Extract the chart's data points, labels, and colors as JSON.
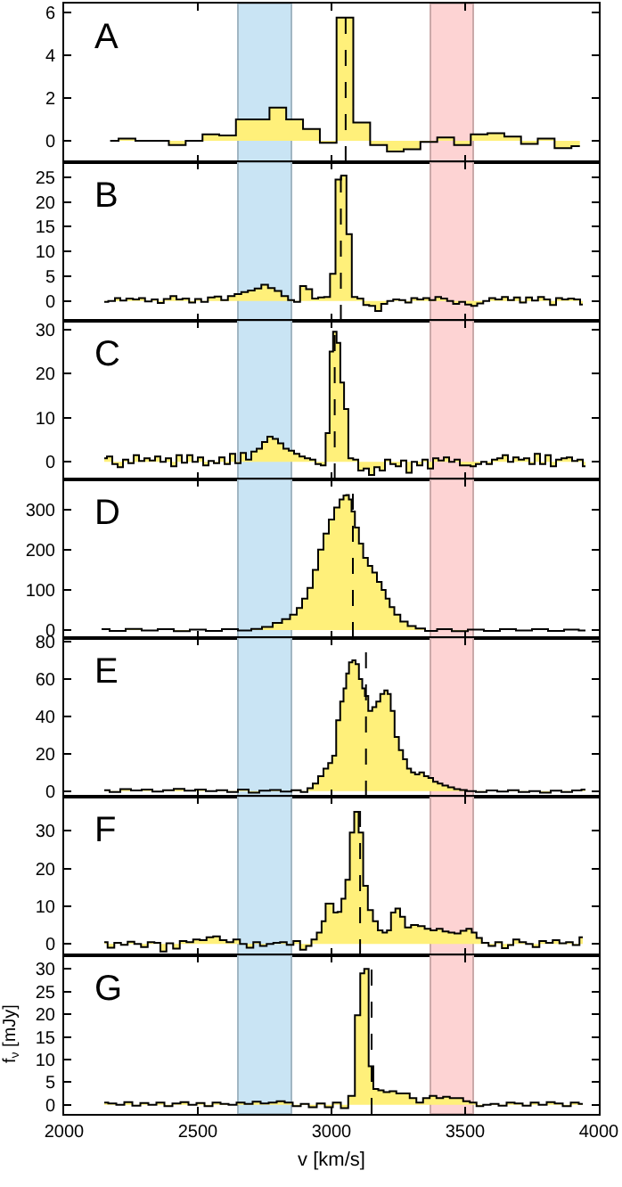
{
  "chart_data": [
    {
      "type": "area",
      "title": "A",
      "color": "#fff07a",
      "xlim": [
        2000,
        4000
      ],
      "xticks": [
        2000,
        2500,
        3000,
        3500,
        4000
      ],
      "ylim": [
        -1,
        6.4
      ],
      "yticks": [
        0,
        2,
        4,
        6
      ],
      "tick_labels": "y",
      "x": [
        2172,
        2235,
        2298,
        2360,
        2423,
        2486,
        2549,
        2611,
        2674,
        2737,
        2799,
        2862,
        2925,
        2988,
        3050,
        3113,
        3176,
        3239,
        3301,
        3364,
        3427,
        3490,
        3552,
        3615,
        3678,
        3740,
        3803,
        3866,
        3929
      ],
      "values": [
        0.0,
        0.1,
        0.0,
        0.0,
        -0.2,
        0.0,
        0.3,
        0.25,
        1.0,
        1.0,
        1.55,
        1.0,
        0.55,
        -0.1,
        5.75,
        0.85,
        -0.2,
        -0.5,
        -0.4,
        -0.05,
        0.15,
        -0.2,
        0.3,
        0.35,
        0.2,
        -0.15,
        0.1,
        -0.35,
        -0.25
      ],
      "bands": [
        {
          "axis": "x",
          "from": 2650,
          "to": 2850,
          "color": "#c9e4f4"
        },
        {
          "axis": "x",
          "from": 3370,
          "to": 3530,
          "color": "#fdd3d3"
        }
      ],
      "ref_lines": [
        {
          "axis": "x",
          "value": 3053,
          "line_style": "dashed"
        }
      ]
    },
    {
      "type": "area",
      "title": "B",
      "color": "#fff07a",
      "xlim": [
        2000,
        4000
      ],
      "xticks": [
        2000,
        2500,
        3000,
        3500,
        4000
      ],
      "ylim": [
        -4,
        28
      ],
      "yticks": [
        0,
        5,
        10,
        15,
        20,
        25
      ],
      "tick_labels": "y",
      "x": [
        2150,
        2180,
        2200,
        2220,
        2245,
        2270,
        2290,
        2315,
        2340,
        2360,
        2385,
        2410,
        2430,
        2455,
        2480,
        2500,
        2525,
        2550,
        2575,
        2600,
        2625,
        2650,
        2675,
        2700,
        2725,
        2750,
        2775,
        2800,
        2825,
        2850,
        2870,
        2895,
        2915,
        2940,
        2960,
        2985,
        3004,
        3026,
        3046,
        3066,
        3086,
        3108,
        3130,
        3152,
        3175,
        3197,
        3220,
        3242,
        3265,
        3287,
        3310,
        3332,
        3355,
        3377,
        3400,
        3420,
        3445,
        3465,
        3490,
        3510,
        3535,
        3555,
        3580,
        3600,
        3625,
        3650,
        3670,
        3695,
        3715,
        3740,
        3760,
        3785,
        3805,
        3830,
        3850,
        3875,
        3895,
        3920,
        3940
      ],
      "values": [
        -0.2,
        0.0,
        0.6,
        0.1,
        0.5,
        0.3,
        0.6,
        -0.1,
        0.3,
        -0.4,
        0.4,
        1.0,
        0.3,
        0.5,
        -0.3,
        0.4,
        -0.2,
        0.7,
        0.9,
        0.2,
        1.0,
        1.4,
        1.8,
        2.1,
        2.5,
        3.3,
        2.6,
        2.0,
        1.0,
        0.2,
        -0.2,
        3.0,
        2.4,
        0.5,
        0.7,
        0.8,
        5.5,
        24.5,
        25.3,
        13.5,
        0.8,
        0.5,
        -0.8,
        -1.0,
        -2.0,
        -0.6,
        0.0,
        0.3,
        0.2,
        -0.3,
        0.6,
        0.3,
        0.6,
        0.2,
        0.8,
        0.5,
        0.0,
        -0.6,
        -0.2,
        -0.7,
        -1.0,
        -0.5,
        0.0,
        0.6,
        0.3,
        0.8,
        0.2,
        0.7,
        -0.3,
        0.7,
        0.1,
        0.8,
        0.3,
        -0.8,
        0.6,
        0.3,
        0.5,
        0.3,
        -0.7
      ],
      "bands": [
        {
          "axis": "x",
          "from": 2650,
          "to": 2850,
          "color": "#c9e4f4"
        },
        {
          "axis": "x",
          "from": 3370,
          "to": 3530,
          "color": "#fdd3d3"
        }
      ],
      "ref_lines": [
        {
          "axis": "x",
          "value": 3035,
          "line_style": "dashed"
        }
      ]
    },
    {
      "type": "area",
      "title": "C",
      "color": "#fff07a",
      "xlim": [
        2000,
        4000
      ],
      "xticks": [
        2000,
        2500,
        3000,
        3500,
        4000
      ],
      "ylim": [
        -4,
        32
      ],
      "yticks": [
        0,
        10,
        20,
        30
      ],
      "tick_labels": "y",
      "x": [
        2150,
        2170,
        2190,
        2210,
        2230,
        2250,
        2270,
        2290,
        2310,
        2330,
        2350,
        2370,
        2390,
        2410,
        2430,
        2450,
        2470,
        2490,
        2510,
        2530,
        2550,
        2570,
        2590,
        2610,
        2630,
        2650,
        2670,
        2690,
        2710,
        2730,
        2750,
        2770,
        2790,
        2810,
        2830,
        2850,
        2870,
        2890,
        2910,
        2930,
        2950,
        2970,
        2986,
        3000,
        3012,
        3026,
        3040,
        3054,
        3072,
        3090,
        3110,
        3130,
        3150,
        3170,
        3190,
        3210,
        3230,
        3250,
        3270,
        3290,
        3310,
        3330,
        3350,
        3370,
        3390,
        3410,
        3430,
        3450,
        3470,
        3490,
        3510,
        3530,
        3550,
        3570,
        3590,
        3610,
        3630,
        3650,
        3670,
        3690,
        3710,
        3730,
        3750,
        3770,
        3790,
        3810,
        3830,
        3850,
        3870,
        3890,
        3910,
        3930,
        3950
      ],
      "values": [
        0.8,
        1.2,
        -0.5,
        -1.2,
        0.5,
        -0.3,
        1.5,
        0.2,
        0.8,
        0.3,
        1.2,
        0.0,
        0.8,
        -1.0,
        1.5,
        -0.2,
        1.5,
        0.0,
        1.0,
        -0.8,
        0.2,
        -0.3,
        1.0,
        -0.5,
        1.8,
        -0.3,
        2.0,
        0.5,
        2.3,
        3.0,
        4.5,
        5.7,
        5.2,
        4.2,
        3.0,
        2.5,
        1.8,
        1.2,
        0.8,
        0.5,
        -0.5,
        -0.8,
        6.5,
        25,
        29.5,
        27,
        18,
        12,
        0.8,
        0.5,
        -2.0,
        -1.5,
        -3.0,
        -1.2,
        -2.0,
        0.5,
        -0.5,
        -1.0,
        0.3,
        -2.5,
        0.0,
        -0.8,
        0.5,
        -1.5,
        0.8,
        0.3,
        1.0,
        0.0,
        0.5,
        -0.8,
        -0.8,
        -1.0,
        -0.5,
        0.0,
        -0.5,
        0.5,
        0.8,
        1.5,
        0.0,
        1.0,
        0.5,
        0.8,
        -0.5,
        1.8,
        -0.5,
        1.5,
        -1.0,
        0.5,
        0.8,
        1.0,
        0.2,
        0.5,
        -1.0
      ],
      "bands": [
        {
          "axis": "x",
          "from": 2650,
          "to": 2850,
          "color": "#c9e4f4"
        },
        {
          "axis": "x",
          "from": 3370,
          "to": 3530,
          "color": "#fdd3d3"
        }
      ],
      "ref_lines": [
        {
          "axis": "x",
          "value": 3012,
          "line_style": "dashed"
        }
      ]
    },
    {
      "type": "area",
      "title": "D",
      "color": "#fff07a",
      "xlim": [
        2000,
        4000
      ],
      "xticks": [
        2000,
        2500,
        3000,
        3500,
        4000
      ],
      "ylim": [
        -20,
        375
      ],
      "yticks": [
        0,
        100,
        200,
        300
      ],
      "tick_labels": "y",
      "x": [
        2140,
        2200,
        2260,
        2320,
        2380,
        2440,
        2500,
        2560,
        2620,
        2680,
        2720,
        2760,
        2800,
        2830,
        2860,
        2880,
        2900,
        2920,
        2940,
        2960,
        2980,
        3000,
        3020,
        3040,
        3050,
        3060,
        3070,
        3080,
        3095,
        3110,
        3127,
        3145,
        3160,
        3180,
        3195,
        3210,
        3225,
        3245,
        3270,
        3300,
        3330,
        3370,
        3420,
        3480,
        3540,
        3600,
        3660,
        3720,
        3780,
        3840,
        3900,
        3950
      ],
      "values": [
        2,
        -2,
        3,
        -1,
        2,
        -3,
        1,
        -2,
        2,
        -1,
        3,
        8,
        18,
        27,
        38,
        55,
        78,
        105,
        150,
        200,
        240,
        275,
        305,
        325,
        335,
        336,
        325,
        295,
        255,
        215,
        180,
        160,
        143,
        120,
        100,
        78,
        57,
        38,
        21,
        10,
        4,
        -2,
        2,
        -3,
        1,
        -2,
        2,
        -1,
        2,
        -2,
        1,
        -1
      ],
      "bands": [
        {
          "axis": "x",
          "from": 2650,
          "to": 2850,
          "color": "#c9e4f4"
        },
        {
          "axis": "x",
          "from": 3370,
          "to": 3530,
          "color": "#fdd3d3"
        }
      ],
      "ref_lines": [
        {
          "axis": "x",
          "value": 3080,
          "line_style": "dashed"
        }
      ]
    },
    {
      "type": "area",
      "title": "E",
      "color": "#fff07a",
      "xlim": [
        2000,
        4000
      ],
      "xticks": [
        2000,
        2500,
        3000,
        3500,
        4000
      ],
      "ylim": [
        -3,
        82
      ],
      "yticks": [
        0,
        20,
        40,
        60,
        80
      ],
      "tick_labels": "y",
      "x": [
        2150,
        2190,
        2230,
        2270,
        2310,
        2350,
        2390,
        2430,
        2470,
        2510,
        2550,
        2590,
        2630,
        2670,
        2710,
        2750,
        2790,
        2830,
        2870,
        2900,
        2920,
        2940,
        2960,
        2980,
        2995,
        3010,
        3025,
        3040,
        3050,
        3060,
        3071,
        3085,
        3095,
        3110,
        3120,
        3130,
        3145,
        3160,
        3175,
        3190,
        3205,
        3215,
        3228,
        3244,
        3260,
        3275,
        3290,
        3305,
        3320,
        3337,
        3355,
        3370,
        3390,
        3405,
        3425,
        3447,
        3470,
        3492,
        3520,
        3560,
        3600,
        3640,
        3680,
        3720,
        3760,
        3800,
        3840,
        3880,
        3920,
        3950
      ],
      "values": [
        0.5,
        -0.5,
        1.0,
        0.3,
        0.8,
        -0.3,
        0.5,
        1.2,
        0.2,
        0.8,
        0.0,
        0.5,
        -0.5,
        0.8,
        -0.8,
        0.2,
        0.6,
        -0.3,
        0.5,
        -0.5,
        1.5,
        4,
        8,
        12,
        15,
        19,
        38,
        48,
        55,
        63,
        69,
        70,
        68,
        60,
        55,
        51,
        43,
        45,
        48,
        52,
        54,
        52,
        43,
        29,
        22,
        17,
        12,
        10,
        9,
        10,
        8,
        7,
        5,
        4,
        3,
        2,
        1.0,
        0.6,
        0.0,
        -0.5,
        0.3,
        -0.3,
        0.5,
        -0.5,
        0.0,
        -0.8,
        0.2,
        -0.5,
        0.3,
        0.8
      ],
      "bands": [
        {
          "axis": "x",
          "from": 2650,
          "to": 2850,
          "color": "#c9e4f4"
        },
        {
          "axis": "x",
          "from": 3370,
          "to": 3530,
          "color": "#fdd3d3"
        }
      ],
      "ref_lines": [
        {
          "axis": "x",
          "value": 3129,
          "line_style": "dashed"
        }
      ]
    },
    {
      "type": "area",
      "title": "F",
      "color": "#fff07a",
      "xlim": [
        2000,
        4000
      ],
      "xticks": [
        2000,
        2500,
        3000,
        3500,
        4000
      ],
      "ylim": [
        -3,
        39
      ],
      "yticks": [
        0,
        10,
        20,
        30
      ],
      "tick_labels": "y",
      "x": [
        2150,
        2175,
        2200,
        2225,
        2250,
        2275,
        2300,
        2325,
        2350,
        2370,
        2395,
        2420,
        2445,
        2470,
        2495,
        2520,
        2545,
        2570,
        2595,
        2620,
        2645,
        2670,
        2695,
        2720,
        2745,
        2770,
        2795,
        2820,
        2845,
        2870,
        2895,
        2915,
        2935,
        2955,
        2971,
        2985,
        3000,
        3015,
        3030,
        3044,
        3060,
        3077,
        3093,
        3110,
        3127,
        3145,
        3165,
        3182,
        3200,
        3215,
        3230,
        3248,
        3265,
        3285,
        3310,
        3337,
        3360,
        3381,
        3405,
        3426,
        3450,
        3470,
        3495,
        3514,
        3535,
        3550,
        3575,
        3600,
        3625,
        3650,
        3670,
        3690,
        3715,
        3740,
        3765,
        3790,
        3815,
        3840,
        3865,
        3890,
        3915,
        3940
      ],
      "values": [
        0.5,
        -1.0,
        0.3,
        -0.2,
        0.6,
        0.0,
        -0.8,
        0.5,
        0.3,
        -2.0,
        0.2,
        -1.2,
        0.8,
        0.5,
        1.2,
        1.0,
        1.8,
        2.0,
        1.0,
        0.5,
        1.2,
        0.0,
        -1.0,
        0.5,
        -0.5,
        0.0,
        0.3,
        0.5,
        -0.2,
        0.8,
        -1.5,
        -0.5,
        1.2,
        3.0,
        6,
        10.7,
        10.7,
        8.3,
        8.5,
        12,
        17,
        29.5,
        35,
        29.5,
        15.4,
        9,
        6,
        3.6,
        3.0,
        3.6,
        8.3,
        9.4,
        7.2,
        4.4,
        5,
        4.7,
        4.0,
        3.6,
        4.0,
        3.3,
        3.0,
        2.8,
        3.5,
        4.0,
        3.0,
        1.6,
        0.3,
        -0.5,
        0.5,
        -1.1,
        -0.3,
        1.2,
        0.5,
        0.0,
        -0.8,
        0.8,
        0.3,
        1.0,
        0.2,
        0.5,
        -0.3,
        1.8
      ],
      "bands": [
        {
          "axis": "x",
          "from": 2650,
          "to": 2850,
          "color": "#c9e4f4"
        },
        {
          "axis": "x",
          "from": 3370,
          "to": 3530,
          "color": "#fdd3d3"
        }
      ],
      "ref_lines": [
        {
          "axis": "x",
          "value": 3107,
          "line_style": "dashed"
        }
      ]
    },
    {
      "type": "area",
      "title": "G",
      "xlabel": "v [km/s]",
      "ylabel": "f$_{ν}$ [mJy]",
      "color": "#fff07a",
      "xlim": [
        2000,
        4000
      ],
      "xticks": [
        2000,
        2500,
        3000,
        3500,
        4000
      ],
      "ylim": [
        -2,
        33
      ],
      "yticks": [
        0,
        5,
        10,
        15,
        20,
        25,
        30
      ],
      "x": [
        2150,
        2180,
        2210,
        2240,
        2270,
        2300,
        2330,
        2360,
        2390,
        2420,
        2450,
        2480,
        2510,
        2540,
        2570,
        2600,
        2630,
        2660,
        2690,
        2720,
        2750,
        2780,
        2810,
        2840,
        2870,
        2900,
        2930,
        2960,
        2990,
        3020,
        3050,
        3075,
        3100,
        3115,
        3130,
        3148,
        3165,
        3185,
        3205,
        3230,
        3255,
        3280,
        3305,
        3330,
        3355,
        3380,
        3405,
        3430,
        3455,
        3480,
        3505,
        3530,
        3555,
        3580,
        3610,
        3640,
        3670,
        3700,
        3730,
        3760,
        3790,
        3820,
        3850,
        3880,
        3910,
        3940
      ],
      "values": [
        0.5,
        0.3,
        0.0,
        0.6,
        -0.2,
        0.4,
        0.0,
        0.5,
        -0.3,
        0.3,
        0.6,
        0.0,
        0.4,
        -0.3,
        0.5,
        0.2,
        0.0,
        0.5,
        0.2,
        0.7,
        0.3,
        0.5,
        0.8,
        0.5,
        -0.3,
        0.2,
        -0.5,
        0.3,
        -0.5,
        0.5,
        -0.7,
        2.0,
        19.8,
        29,
        30,
        8.5,
        3.5,
        3.2,
        2.8,
        3.0,
        2.5,
        2.5,
        1.5,
        0.5,
        1.5,
        2.0,
        1.5,
        1.8,
        1.5,
        1.5,
        0.8,
        0.5,
        -0.3,
        0.0,
        0.2,
        -0.2,
        0.5,
        0.3,
        -0.2,
        0.5,
        0.0,
        0.6,
        0.3,
        -0.3,
        0.5,
        0.2
      ],
      "bands": [
        {
          "axis": "x",
          "from": 2650,
          "to": 2850,
          "color": "#c9e4f4"
        },
        {
          "axis": "x",
          "from": 3370,
          "to": 3530,
          "color": "#fdd3d3"
        }
      ],
      "ref_lines": [
        {
          "axis": "x",
          "value": 3150,
          "line_style": "dashed"
        }
      ]
    }
  ]
}
